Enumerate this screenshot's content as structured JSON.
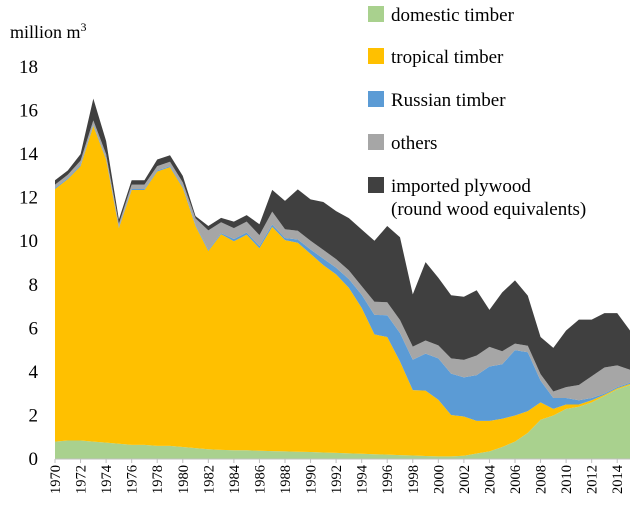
{
  "chart_data": {
    "type": "area",
    "stacked": true,
    "ylabel": "million m",
    "ylabel_superscript": "3",
    "ylim": [
      0,
      18
    ],
    "yticks": [
      0,
      2,
      4,
      6,
      8,
      10,
      12,
      14,
      16,
      18
    ],
    "xlim": [
      1970,
      2015
    ],
    "xticks": [
      1970,
      1972,
      1974,
      1976,
      1978,
      1980,
      1982,
      1984,
      1986,
      1988,
      1990,
      1992,
      1994,
      1996,
      1998,
      2000,
      2002,
      2004,
      2006,
      2008,
      2010,
      2012,
      2014
    ],
    "grid": false,
    "legend_position": "top-right",
    "x": [
      1970,
      1971,
      1972,
      1973,
      1974,
      1975,
      1976,
      1977,
      1978,
      1979,
      1980,
      1981,
      1982,
      1983,
      1984,
      1985,
      1986,
      1987,
      1988,
      1989,
      1990,
      1991,
      1992,
      1993,
      1994,
      1995,
      1996,
      1997,
      1998,
      1999,
      2000,
      2001,
      2002,
      2003,
      2004,
      2005,
      2006,
      2007,
      2008,
      2009,
      2010,
      2011,
      2012,
      2013,
      2014,
      2015
    ],
    "series": [
      {
        "name": "domestic timber",
        "color": "#a9d18e",
        "values": [
          0.8,
          0.85,
          0.85,
          0.8,
          0.75,
          0.7,
          0.65,
          0.65,
          0.6,
          0.6,
          0.55,
          0.5,
          0.45,
          0.42,
          0.4,
          0.4,
          0.38,
          0.36,
          0.35,
          0.33,
          0.32,
          0.3,
          0.28,
          0.26,
          0.24,
          0.22,
          0.2,
          0.18,
          0.16,
          0.14,
          0.12,
          0.12,
          0.15,
          0.25,
          0.35,
          0.55,
          0.8,
          1.2,
          1.8,
          2.0,
          2.3,
          2.4,
          2.6,
          2.9,
          3.2,
          3.4
        ]
      },
      {
        "name": "tropical timber",
        "color": "#ffc000",
        "values": [
          11.6,
          12.0,
          12.6,
          14.5,
          13.0,
          9.9,
          11.7,
          11.7,
          12.6,
          12.8,
          11.9,
          10.2,
          9.1,
          9.9,
          9.6,
          9.9,
          9.3,
          10.3,
          9.7,
          9.6,
          9.1,
          8.6,
          8.2,
          7.6,
          6.7,
          5.5,
          5.4,
          4.3,
          3.0,
          3.0,
          2.6,
          1.9,
          1.8,
          1.5,
          1.4,
          1.3,
          1.2,
          1.0,
          0.8,
          0.3,
          0.2,
          0.1,
          0.1,
          0.05,
          0.05,
          0.05
        ]
      },
      {
        "name": "Russian timber",
        "color": "#5b9bd5",
        "values": [
          0.05,
          0.05,
          0.05,
          0.05,
          0.05,
          0.05,
          0.05,
          0.05,
          0.05,
          0.05,
          0.05,
          0.05,
          0.05,
          0.05,
          0.1,
          0.1,
          0.1,
          0.1,
          0.1,
          0.15,
          0.2,
          0.3,
          0.3,
          0.4,
          0.6,
          0.9,
          1.0,
          1.3,
          1.4,
          1.7,
          1.9,
          1.9,
          1.8,
          2.1,
          2.5,
          2.5,
          3.0,
          2.7,
          1.0,
          0.5,
          0.3,
          0.2,
          0.1,
          0.05,
          0.05,
          0.05
        ]
      },
      {
        "name": "others",
        "color": "#a6a6a6",
        "values": [
          0.15,
          0.15,
          0.2,
          0.2,
          0.2,
          0.15,
          0.2,
          0.2,
          0.2,
          0.2,
          0.2,
          0.3,
          0.9,
          0.5,
          0.5,
          0.5,
          0.5,
          0.6,
          0.4,
          0.4,
          0.4,
          0.4,
          0.4,
          0.4,
          0.4,
          0.6,
          0.6,
          0.6,
          0.6,
          0.6,
          0.6,
          0.7,
          0.8,
          0.9,
          0.9,
          0.6,
          0.3,
          0.3,
          0.3,
          0.3,
          0.5,
          0.7,
          1.0,
          1.2,
          1.0,
          0.6
        ]
      },
      {
        "name": "imported plywood\n(round wood equivalents)",
        "color": "#404040",
        "values": [
          0.2,
          0.2,
          0.3,
          1.0,
          0.6,
          0.2,
          0.2,
          0.2,
          0.3,
          0.3,
          0.3,
          0.1,
          0.2,
          0.2,
          0.3,
          0.3,
          0.5,
          1.0,
          1.3,
          1.9,
          1.9,
          2.2,
          2.2,
          2.4,
          2.6,
          2.8,
          3.5,
          3.8,
          2.4,
          3.6,
          3.1,
          2.9,
          2.9,
          3.0,
          1.7,
          2.7,
          2.9,
          2.3,
          1.7,
          2.0,
          2.6,
          3.0,
          2.6,
          2.5,
          2.4,
          1.8
        ]
      }
    ]
  }
}
